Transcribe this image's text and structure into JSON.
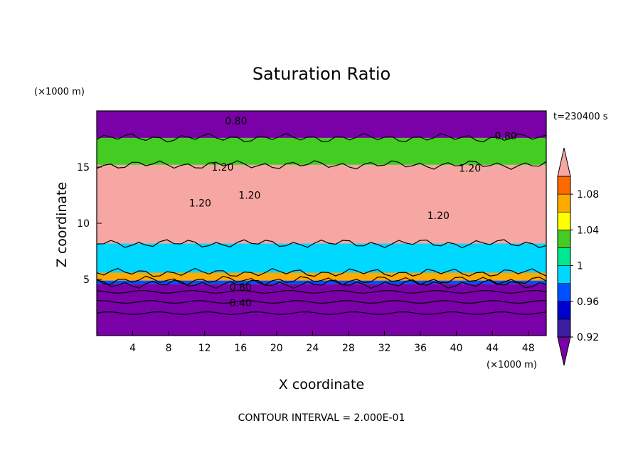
{
  "chart_data": {
    "type": "heatmap",
    "title": "Saturation Ratio",
    "xlabel": "X coordinate",
    "ylabel": "Z coordinate",
    "x_unit": "(×1000 m)",
    "y_unit": "(×1000 m)",
    "time_label": "t=230400 s",
    "footer": "CONTOUR INTERVAL = 2.000E-01",
    "xlim": [
      0,
      50
    ],
    "ylim": [
      0,
      20
    ],
    "x_ticks": [
      4,
      8,
      12,
      16,
      20,
      24,
      28,
      32,
      36,
      40,
      44,
      48
    ],
    "x_tick_labels": [
      "4",
      "8",
      "12",
      "16",
      "20",
      "24",
      "28",
      "32",
      "36",
      "40",
      "44",
      "48"
    ],
    "y_ticks": [
      5,
      10,
      15
    ],
    "y_tick_labels": [
      "5",
      "10",
      "15"
    ],
    "colorbar": {
      "levels": [
        0.92,
        0.94,
        0.96,
        0.98,
        1.0,
        1.02,
        1.04,
        1.06,
        1.08,
        1.1
      ],
      "labels": [
        "0.92",
        "0.96",
        "1",
        "1.04",
        "1.08"
      ],
      "label_values": [
        0.92,
        0.96,
        1.0,
        1.04,
        1.08
      ],
      "colors": [
        "#7a00a8",
        "#3c1ea0",
        "#0000cc",
        "#0050ff",
        "#00d8ff",
        "#00e890",
        "#44cc22",
        "#ffff00",
        "#ffaa00",
        "#ff6a00",
        "#ff2222",
        "#f7a7a3"
      ],
      "extend": "both"
    },
    "bands": [
      {
        "z": [
          0,
          4.6
        ],
        "value": 0.4,
        "class": "below"
      },
      {
        "z": [
          4.6,
          4.9
        ],
        "value": 0.96
      },
      {
        "z": [
          4.9,
          5.6
        ],
        "value": 1.06
      },
      {
        "z": [
          5.6,
          8.2
        ],
        "value": 0.99
      },
      {
        "z": [
          8.2,
          15.2
        ],
        "value": 1.2,
        "class": "above"
      },
      {
        "z": [
          15.2,
          17.6
        ],
        "value": 1.02
      },
      {
        "z": [
          17.6,
          20
        ],
        "value": 0.8,
        "class": "below"
      }
    ],
    "contour_labels": [
      {
        "text": "0.80",
        "x": 15.5,
        "z": 19.1
      },
      {
        "text": "0.80",
        "x": 45.5,
        "z": 17.8
      },
      {
        "text": "1.20",
        "x": 14.0,
        "z": 15.0
      },
      {
        "text": "1.20",
        "x": 41.5,
        "z": 14.9
      },
      {
        "text": "1.20",
        "x": 17.0,
        "z": 12.5
      },
      {
        "text": "1.20",
        "x": 11.5,
        "z": 11.8
      },
      {
        "text": "1.20",
        "x": 38.0,
        "z": 10.7
      },
      {
        "text": "0.80",
        "x": 16.0,
        "z": 4.3
      },
      {
        "text": "0.40",
        "x": 16.0,
        "z": 2.9
      }
    ]
  }
}
